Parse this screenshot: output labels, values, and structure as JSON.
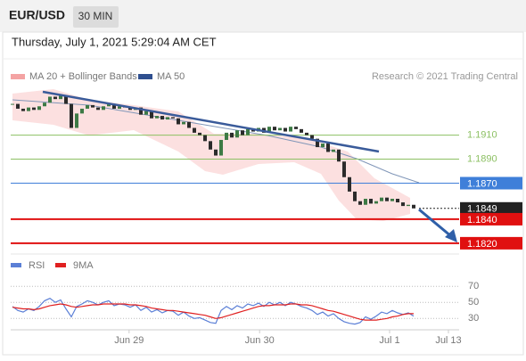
{
  "header": {
    "symbol": "EUR/USD",
    "timeframe": "30 MIN",
    "datetime": "Thursday, July 1, 2021 5:29:04 AM CET"
  },
  "chart_data": [
    {
      "type": "candlestick",
      "legend": [
        {
          "name": "MA 20 + Bollinger Bands",
          "color": "#f4a3a3"
        },
        {
          "name": "MA 50",
          "color": "#2f4f8f"
        }
      ],
      "credit": "Research © 2021 Trading Central",
      "values": [
        1.1936,
        1.1932,
        1.193,
        1.1933,
        1.1931,
        1.1934,
        1.1937,
        1.1942,
        1.194,
        1.1943,
        1.1936,
        1.1916,
        1.1928,
        1.1932,
        1.1935,
        1.1933,
        1.1931,
        1.1934,
        1.1936,
        1.1932,
        1.1934,
        1.1933,
        1.1931,
        1.1933,
        1.1927,
        1.193,
        1.1924,
        1.1926,
        1.1923,
        1.1925,
        1.1924,
        1.1919,
        1.1921,
        1.1916,
        1.1912,
        1.191,
        1.1905,
        1.1898,
        1.1893,
        1.1906,
        1.1912,
        1.1908,
        1.1914,
        1.191,
        1.1915,
        1.1913,
        1.1916,
        1.1912,
        1.1917,
        1.1914,
        1.1916,
        1.1913,
        1.1917,
        1.1915,
        1.1912,
        1.191,
        1.1907,
        1.19,
        1.1903,
        1.1896,
        1.1898,
        1.1888,
        1.1875,
        1.1863,
        1.1855,
        1.1852,
        1.1857,
        1.1853,
        1.1855,
        1.1858,
        1.1855,
        1.1857,
        1.1854,
        1.1851,
        1.1852,
        1.1849
      ],
      "color_up": "#3d7a45",
      "color_down": "#2b2b2b",
      "ylim": [
        1.1811,
        1.1952
      ],
      "xlim": [
        0,
        83.5
      ],
      "levels": [
        {
          "value": 1.191,
          "label": "1.1910",
          "color": "#8cc063",
          "marker": "text",
          "weight": 1
        },
        {
          "value": 1.189,
          "label": "1.1890",
          "color": "#8cc063",
          "marker": "text",
          "weight": 1
        },
        {
          "value": 1.187,
          "label": "1.1870",
          "color": "#3f7fd9",
          "marker": "box",
          "weight": 1
        },
        {
          "value": 1.1849,
          "label": "1.1849",
          "color": "#222222",
          "marker": "box",
          "weight": 1,
          "dash": true
        },
        {
          "value": 1.184,
          "label": "1.1840",
          "color": "#e01010",
          "marker": "box",
          "weight": 2
        },
        {
          "value": 1.182,
          "label": "1.1820",
          "color": "#e01010",
          "marker": "box",
          "weight": 2
        }
      ]
    },
    {
      "type": "line",
      "series": [
        {
          "name": "RSI",
          "color": "#5b7fd6",
          "values": [
            45,
            40,
            38,
            42,
            40,
            45,
            52,
            55,
            50,
            53,
            42,
            32,
            45,
            48,
            52,
            50,
            47,
            50,
            52,
            46,
            48,
            47,
            44,
            47,
            40,
            44,
            38,
            41,
            37,
            40,
            39,
            34,
            38,
            33,
            30,
            31,
            28,
            25,
            24,
            40,
            45,
            41,
            46,
            43,
            48,
            46,
            49,
            45,
            50,
            47,
            50,
            46,
            50,
            48,
            45,
            43,
            40,
            35,
            38,
            33,
            36,
            30,
            26,
            24,
            23,
            25,
            32,
            29,
            33,
            38,
            36,
            40,
            37,
            35,
            37,
            33
          ]
        },
        {
          "name": "9MA",
          "color": "#e02020",
          "values": [
            44,
            43,
            42,
            42,
            41,
            42,
            44,
            46,
            47,
            48,
            47,
            45,
            44,
            45,
            46,
            47,
            47,
            48,
            48,
            48,
            48,
            48,
            47,
            47,
            46,
            45,
            43,
            42,
            41,
            40,
            40,
            39,
            38,
            37,
            36,
            35,
            34,
            32,
            30,
            31,
            33,
            35,
            37,
            39,
            41,
            43,
            45,
            46,
            46,
            47,
            47,
            47,
            48,
            48,
            47,
            47,
            46,
            44,
            42,
            40,
            39,
            37,
            35,
            33,
            31,
            29,
            28,
            28,
            28,
            29,
            30,
            32,
            33,
            35,
            36,
            36
          ]
        }
      ],
      "ylim": [
        17,
        78
      ],
      "yticks": [
        30,
        50,
        70
      ],
      "grid": true,
      "xlim": [
        0,
        83.5
      ],
      "xticks": [
        {
          "value": 21.8,
          "label": "Jun 29"
        },
        {
          "value": 46.2,
          "label": "Jun 30"
        },
        {
          "value": 70.5,
          "label": "Jul 1"
        },
        {
          "value": 81.5,
          "label": "Jul 13"
        }
      ]
    }
  ]
}
